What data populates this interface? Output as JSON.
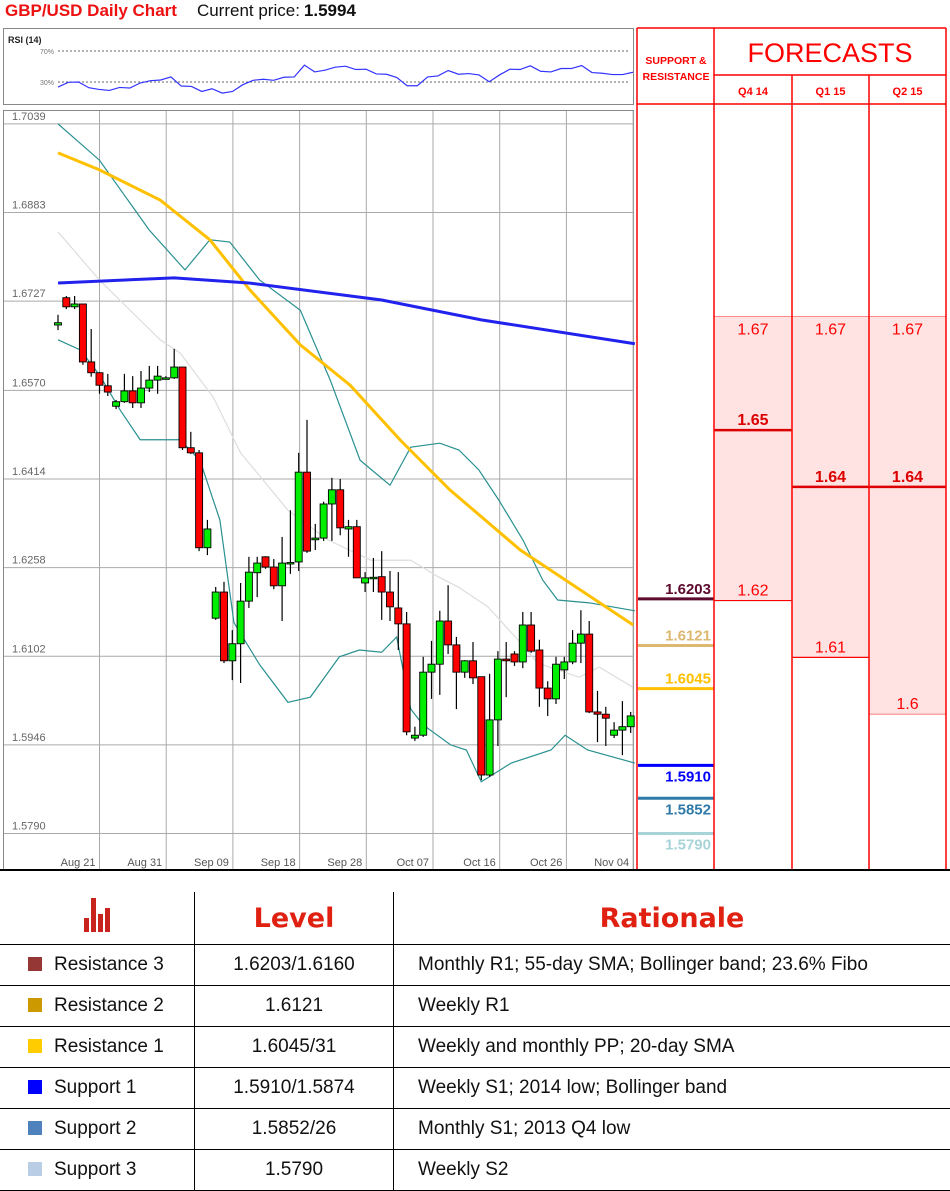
{
  "header": {
    "title": "GBP/USD Daily Chart",
    "price_label": "Current price:",
    "price_value": "1.5994"
  },
  "chart_data": [
    {
      "type": "candlestick",
      "y_axis": {
        "range": [
          1.579,
          1.7039
        ],
        "ticks": [
          "1.7039",
          "1.6883",
          "1.6727",
          "1.6570",
          "1.6414",
          "1.6258",
          "1.6102",
          "1.5946",
          "1.5790"
        ]
      },
      "x_axis": {
        "ticks": [
          "Aug 21",
          "Aug 31",
          "Sep 09",
          "Sep 18",
          "Sep 28",
          "Oct 07",
          "Oct 16",
          "Oct 26",
          "Nov 04"
        ]
      },
      "grid": true,
      "colors": {
        "up": "#00ee00",
        "down": "#ff0000",
        "sma200": "#2222ee",
        "sma55": "#ffc000",
        "sma20": "#dddddd",
        "bollinger": "#2a9090"
      },
      "candles_ohlc": [
        [
          1.6685,
          1.6703,
          1.6676,
          1.6689
        ],
        [
          1.6733,
          1.6736,
          1.6713,
          1.6717
        ],
        [
          1.6717,
          1.6736,
          1.6713,
          1.6722
        ],
        [
          1.6722,
          1.6722,
          1.6615,
          1.662
        ],
        [
          1.662,
          1.6678,
          1.6594,
          1.6601
        ],
        [
          1.6601,
          1.6602,
          1.6564,
          1.6579
        ],
        [
          1.6578,
          1.6599,
          1.656,
          1.6567
        ],
        [
          1.6542,
          1.6553,
          1.6537,
          1.655
        ],
        [
          1.655,
          1.6599,
          1.6548,
          1.6569
        ],
        [
          1.6569,
          1.6595,
          1.6539,
          1.6548
        ],
        [
          1.6548,
          1.6604,
          1.6539,
          1.6574
        ],
        [
          1.6574,
          1.6613,
          1.6567,
          1.6588
        ],
        [
          1.6588,
          1.6613,
          1.6564,
          1.6595
        ],
        [
          1.6592,
          1.6595,
          1.659,
          1.6592
        ],
        [
          1.6592,
          1.6643,
          1.659,
          1.6611
        ],
        [
          1.6611,
          1.6611,
          1.6465,
          1.6469
        ],
        [
          1.6469,
          1.6497,
          1.6458,
          1.646
        ],
        [
          1.646,
          1.6465,
          1.6287,
          1.6293
        ],
        [
          1.6293,
          1.6342,
          1.628,
          1.6326
        ],
        [
          1.6169,
          1.6224,
          1.6166,
          1.6215
        ],
        [
          1.6215,
          1.6233,
          1.609,
          1.6094
        ],
        [
          1.6094,
          1.6148,
          1.606,
          1.6124
        ],
        [
          1.6124,
          1.6231,
          1.6055,
          1.6199
        ],
        [
          1.6199,
          1.6277,
          1.6187,
          1.625
        ],
        [
          1.6249,
          1.6277,
          1.6206,
          1.6266
        ],
        [
          1.6277,
          1.6278,
          1.6256,
          1.6259
        ],
        [
          1.6259,
          1.6273,
          1.622,
          1.6226
        ],
        [
          1.6226,
          1.6312,
          1.6164,
          1.6266
        ],
        [
          1.6266,
          1.6359,
          1.6247,
          1.6267
        ],
        [
          1.6268,
          1.646,
          1.6252,
          1.6426
        ],
        [
          1.6426,
          1.6518,
          1.6284,
          1.6287
        ],
        [
          1.6307,
          1.6335,
          1.6289,
          1.631
        ],
        [
          1.631,
          1.6374,
          1.6305,
          1.637
        ],
        [
          1.637,
          1.6416,
          1.6305,
          1.6395
        ],
        [
          1.6395,
          1.6414,
          1.6315,
          1.6328
        ],
        [
          1.6326,
          1.6342,
          1.6277,
          1.633
        ],
        [
          1.633,
          1.6342,
          1.624,
          1.624
        ],
        [
          1.6231,
          1.625,
          1.6215,
          1.624
        ],
        [
          1.624,
          1.6275,
          1.6215,
          1.6241
        ],
        [
          1.6242,
          1.6287,
          1.6166,
          1.6215
        ],
        [
          1.6215,
          1.6252,
          1.6164,
          1.6189
        ],
        [
          1.6187,
          1.625,
          1.6113,
          1.6159
        ],
        [
          1.6159,
          1.618,
          1.5963,
          1.5969
        ],
        [
          1.5958,
          1.5978,
          1.5953,
          1.5963
        ],
        [
          1.5963,
          1.6101,
          1.596,
          1.6074
        ],
        [
          1.6074,
          1.6129,
          1.6027,
          1.6088
        ],
        [
          1.6088,
          1.6182,
          1.6034,
          1.6164
        ],
        [
          1.6164,
          1.6227,
          1.6106,
          1.6122
        ],
        [
          1.6122,
          1.6136,
          1.6009,
          1.6074
        ],
        [
          1.6074,
          1.6095,
          1.6064,
          1.6094
        ],
        [
          1.6094,
          1.6127,
          1.6053,
          1.6064
        ],
        [
          1.6066,
          1.6066,
          1.5884,
          1.5893
        ],
        [
          1.5893,
          1.6071,
          1.589,
          1.599
        ],
        [
          1.599,
          1.6111,
          1.5944,
          1.6097
        ],
        [
          1.6097,
          1.6127,
          1.603,
          1.6094
        ],
        [
          1.6106,
          1.6111,
          1.6085,
          1.6092
        ],
        [
          1.6092,
          1.618,
          1.6081,
          1.6157
        ],
        [
          1.6157,
          1.618,
          1.6108,
          1.6111
        ],
        [
          1.6113,
          1.6131,
          1.6013,
          1.6046
        ],
        [
          1.6046,
          1.6058,
          1.5997,
          1.6027
        ],
        [
          1.6027,
          1.6101,
          1.6018,
          1.6088
        ],
        [
          1.6078,
          1.6101,
          1.6062,
          1.6092
        ],
        [
          1.6092,
          1.6148,
          1.6088,
          1.6125
        ],
        [
          1.6125,
          1.6183,
          1.609,
          1.6141
        ],
        [
          1.6141,
          1.6164,
          1.6002,
          1.6004
        ],
        [
          1.6004,
          1.6041,
          1.5951,
          1.6
        ],
        [
          1.6,
          1.6013,
          1.5944,
          1.5993
        ],
        [
          1.5963,
          1.5986,
          1.5958,
          1.5972
        ],
        [
          1.5972,
          1.6023,
          1.5928,
          1.5978
        ],
        [
          1.5978,
          1.6004,
          1.5967,
          1.5997
        ]
      ],
      "overlays": {
        "sma200": [
          [
            1,
            1.6759
          ],
          [
            15,
            1.6768
          ],
          [
            24,
            1.6759
          ],
          [
            40,
            1.6729
          ],
          [
            52,
            1.6694
          ],
          [
            70.5,
            1.6652
          ]
        ],
        "sma55": [
          [
            1,
            1.6988
          ],
          [
            6,
            1.6958
          ],
          [
            13.3,
            1.6905
          ],
          [
            19.3,
            1.6835
          ],
          [
            24.1,
            1.6747
          ],
          [
            30.2,
            1.665
          ],
          [
            36.2,
            1.6579
          ],
          [
            42.2,
            1.6483
          ],
          [
            48.2,
            1.6395
          ],
          [
            56.7,
            1.6289
          ],
          [
            63.9,
            1.6219
          ],
          [
            70.3,
            1.6157
          ]
        ],
        "sma20": [
          [
            1,
            1.6849
          ],
          [
            6,
            1.6764
          ],
          [
            13.3,
            1.6659
          ],
          [
            15.7,
            1.6636
          ],
          [
            19.7,
            1.6558
          ],
          [
            23,
            1.646
          ],
          [
            28.7,
            1.6359
          ],
          [
            33.5,
            1.6307
          ],
          [
            36.8,
            1.6284
          ],
          [
            38.7,
            1.6271
          ],
          [
            43.5,
            1.6271
          ],
          [
            46.8,
            1.6242
          ],
          [
            49.2,
            1.6224
          ],
          [
            52.8,
            1.6189
          ],
          [
            56.4,
            1.6131
          ],
          [
            58.8,
            1.609
          ],
          [
            63.8,
            1.6065
          ],
          [
            66.2,
            1.6083
          ],
          [
            70.2,
            1.6048
          ]
        ],
        "bollinger_upper": [
          [
            1,
            1.7039
          ],
          [
            6,
            1.6975
          ],
          [
            12,
            1.6852
          ],
          [
            16.3,
            1.6782
          ],
          [
            19.3,
            1.6835
          ],
          [
            21.7,
            1.6831
          ],
          [
            25.3,
            1.6764
          ],
          [
            30.2,
            1.6711
          ],
          [
            33.8,
            1.6588
          ],
          [
            37.4,
            1.6447
          ],
          [
            41,
            1.6403
          ],
          [
            43.5,
            1.647
          ],
          [
            47,
            1.6477
          ],
          [
            49.3,
            1.6465
          ],
          [
            51.7,
            1.643
          ],
          [
            54.1,
            1.6377
          ],
          [
            57,
            1.6307
          ],
          [
            59.4,
            1.6236
          ],
          [
            61.2,
            1.6201
          ],
          [
            65,
            1.6196
          ],
          [
            70.5,
            1.6182
          ]
        ],
        "bollinger_lower": [
          [
            1,
            1.6659
          ],
          [
            3.7,
            1.6641
          ],
          [
            6,
            1.6597
          ],
          [
            8.5,
            1.6535
          ],
          [
            10.9,
            1.6483
          ],
          [
            15.7,
            1.6483
          ],
          [
            18.1,
            1.6447
          ],
          [
            20.5,
            1.6342
          ],
          [
            22.2,
            1.6161
          ],
          [
            25.3,
            1.6087
          ],
          [
            28.7,
            1.6021
          ],
          [
            31.4,
            1.603
          ],
          [
            34.9,
            1.6101
          ],
          [
            37.3,
            1.6113
          ],
          [
            40,
            1.6109
          ],
          [
            41.8,
            1.6136
          ],
          [
            43.5,
            1.6009
          ],
          [
            45,
            1.5981
          ],
          [
            48.3,
            1.5946
          ],
          [
            50.2,
            1.5937
          ],
          [
            52,
            1.5881
          ],
          [
            55.6,
            1.5914
          ],
          [
            60.4,
            1.5937
          ],
          [
            62.1,
            1.5963
          ],
          [
            64.8,
            1.5937
          ],
          [
            70.5,
            1.5914
          ]
        ]
      }
    },
    {
      "type": "line",
      "title": "RSI (14)",
      "y_ticks": [
        "70%",
        "30%"
      ],
      "color": "#3333ff",
      "values": [
        23.5,
        29.6,
        30,
        22.6,
        20.4,
        19.1,
        23.0,
        22.2,
        28.7,
        31.7,
        32.6,
        36.5,
        24.8,
        24.3,
        17.8,
        21.3,
        15.7,
        17.8,
        26.5,
        32.2,
        33.5,
        32.2,
        36.1,
        36.5,
        51.7,
        43.0,
        45.2,
        49.1,
        50.4,
        46.1,
        46.5,
        40.4,
        40.0,
        35.7,
        25.2,
        25.2,
        36.5,
        37.8,
        44.8,
        40.0,
        40.9,
        39.1,
        30.4,
        39.1,
        46.5,
        46.1,
        50.9,
        43.9,
        43.0,
        47.4,
        47.4,
        51.3,
        42.2,
        41.3,
        39.6,
        39.6,
        42.6
      ]
    }
  ],
  "levels_panel": {
    "title": "SUPPORT & RESISTANCE",
    "levels": [
      {
        "value": 1.6203,
        "label": "1.6203",
        "color": "#5c0a2e"
      },
      {
        "value": 1.6121,
        "label": "1.6121",
        "color": "#dcb870"
      },
      {
        "value": 1.6045,
        "label": "1.6045",
        "color": "#ffc000"
      },
      {
        "value": 1.591,
        "label": "1.5910",
        "color": "#0000ff"
      },
      {
        "value": 1.5852,
        "label": "1.5852",
        "color": "#2f7aa8"
      },
      {
        "value": 1.579,
        "label": "1.5790",
        "color": "#a8d4d8"
      }
    ]
  },
  "forecasts": {
    "title": "FORECASTS",
    "color": "#ff0000",
    "fill": "#ffe3e3",
    "columns": [
      {
        "label": "Q4 14",
        "high": "1.67",
        "target": "1.65",
        "low": "1.62"
      },
      {
        "label": "Q1 15",
        "high": "1.67",
        "target": "1.64",
        "low": "1.61"
      },
      {
        "label": "Q2 15",
        "high": "1.67",
        "target": "1.64",
        "low": "1.6"
      }
    ]
  },
  "table": {
    "icon": "bar-chart-icon",
    "headers": [
      "Level",
      "Rationale"
    ],
    "rows": [
      {
        "name": "Resistance 3",
        "color": "#953735",
        "level": "1.6203/1.6160",
        "rationale": "Monthly R1; 55-day SMA; Bollinger band; 23.6% Fibo"
      },
      {
        "name": "Resistance 2",
        "color": "#cc9900",
        "level": "1.6121",
        "rationale": "Weekly R1"
      },
      {
        "name": "Resistance 1",
        "color": "#ffcc00",
        "level": "1.6045/31",
        "rationale": "Weekly and monthly PP; 20-day SMA"
      },
      {
        "name": "Support 1",
        "color": "#0000ff",
        "level": "1.5910/1.5874",
        "rationale": "Weekly S1; 2014 low; Bollinger band"
      },
      {
        "name": "Support 2",
        "color": "#4f81bd",
        "level": "1.5852/26",
        "rationale": "Monthly S1; 2013 Q4 low"
      },
      {
        "name": "Support 3",
        "color": "#b9cde5",
        "level": "1.5790",
        "rationale": "Weekly S2"
      }
    ]
  }
}
